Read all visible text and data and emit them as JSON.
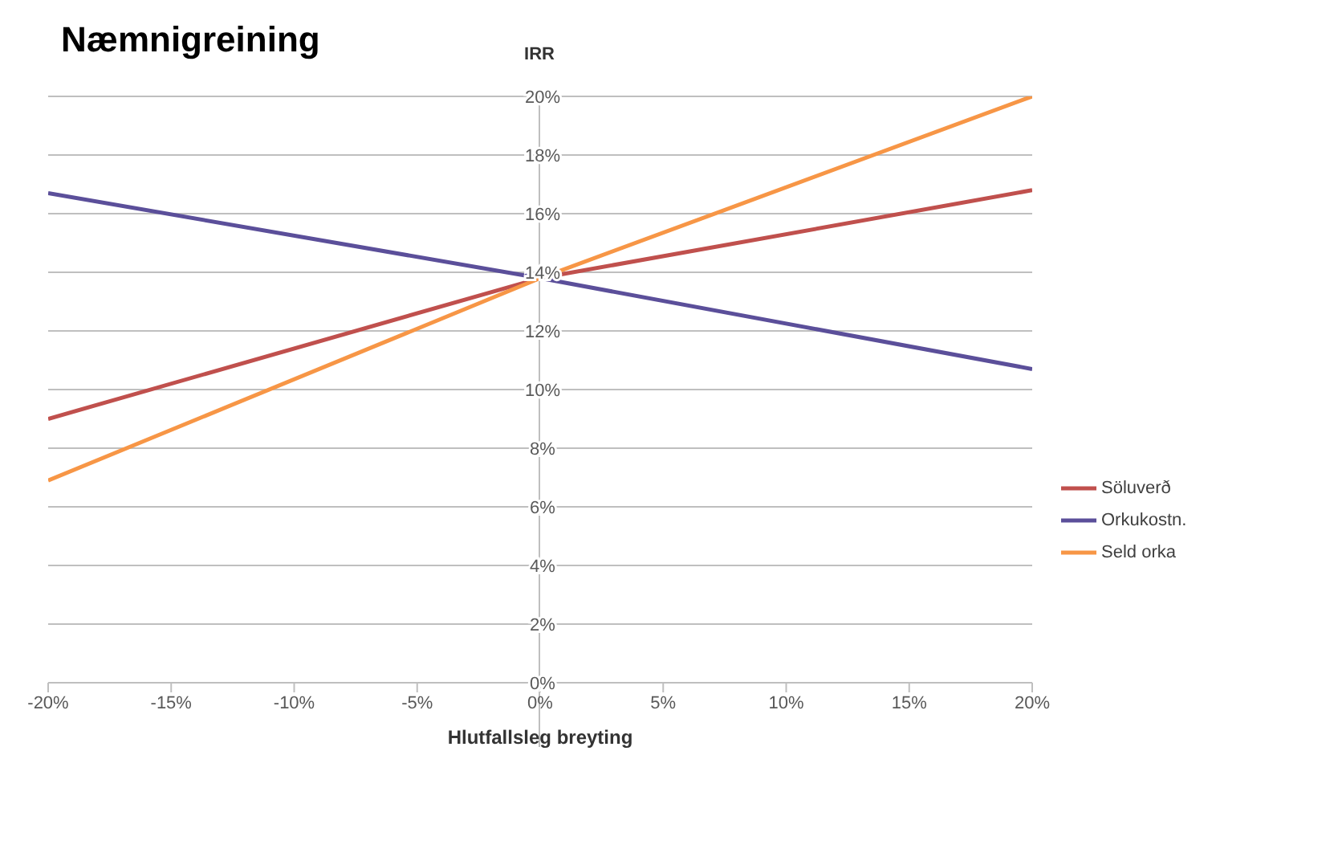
{
  "chart_data": {
    "type": "line",
    "title": "Næmnigreining",
    "xlabel": "Hlutfallsleg breyting",
    "ylabel": "IRR",
    "x": [
      -0.2,
      0,
      0.2
    ],
    "series": [
      {
        "name": "Söluverð",
        "color": "#c0504d",
        "values": [
          0.09,
          0.138,
          0.168
        ]
      },
      {
        "name": "Orkukostn.",
        "color": "#5b4f9a",
        "values": [
          0.167,
          0.138,
          0.107
        ]
      },
      {
        "name": "Seld orka",
        "color": "#f79646",
        "values": [
          0.069,
          0.138,
          0.2
        ]
      }
    ],
    "xlim": [
      -0.2,
      0.2
    ],
    "xticks": [
      {
        "value": -0.2,
        "label": "-20%"
      },
      {
        "value": -0.15,
        "label": "-15%"
      },
      {
        "value": -0.1,
        "label": "-10%"
      },
      {
        "value": -0.05,
        "label": "-5%"
      },
      {
        "value": 0,
        "label": "0%"
      },
      {
        "value": 0.05,
        "label": "5%"
      },
      {
        "value": 0.1,
        "label": "10%"
      },
      {
        "value": 0.15,
        "label": "15%"
      },
      {
        "value": 0.2,
        "label": "20%"
      }
    ],
    "ylim": [
      0,
      0.2
    ],
    "yticks": [
      {
        "value": 0,
        "label": "0%"
      },
      {
        "value": 0.02,
        "label": "2%"
      },
      {
        "value": 0.04,
        "label": "4%"
      },
      {
        "value": 0.06,
        "label": "6%"
      },
      {
        "value": 0.08,
        "label": "8%"
      },
      {
        "value": 0.1,
        "label": "10%"
      },
      {
        "value": 0.12,
        "label": "12%"
      },
      {
        "value": 0.14,
        "label": "14%"
      },
      {
        "value": 0.16,
        "label": "16%"
      },
      {
        "value": 0.18,
        "label": "18%"
      },
      {
        "value": 0.2,
        "label": "20%"
      }
    ],
    "grid": "y",
    "legend": "right",
    "marker": "none",
    "line_style": "solid"
  }
}
